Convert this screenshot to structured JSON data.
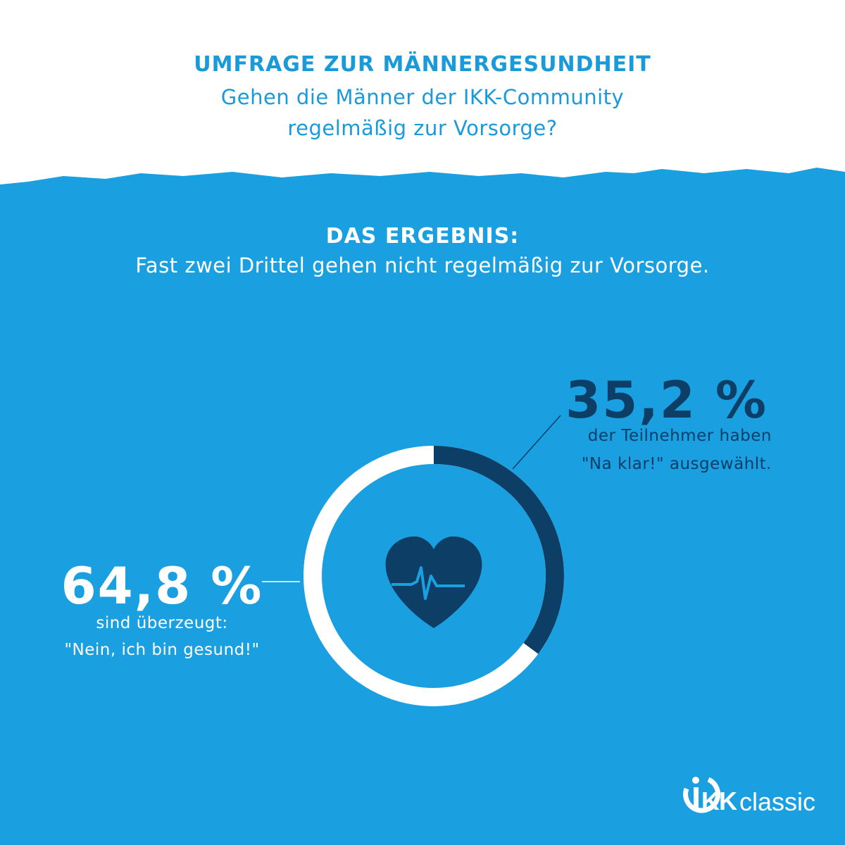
{
  "header": {
    "title": "UMFRAGE ZUR MÄNNERGESUNDHEIT",
    "subtitle_line1": "Gehen die Männer der IKK-Community",
    "subtitle_line2": "regelmäßig zur Vorsorge?"
  },
  "result": {
    "heading": "DAS ERGEBNIS:",
    "text": "Fast zwei Drittel gehen nicht regelmäßig zur Vorsorge."
  },
  "chart_data": {
    "type": "pie",
    "style": "donut",
    "series": [
      {
        "value": 35.2,
        "label": "35,2 %",
        "desc_line1": "der Teilnehmer haben",
        "desc_line2": "\"Na klar!\" ausgewählt.",
        "color": "#0d3e66"
      },
      {
        "value": 64.8,
        "label": "64,8 %",
        "desc_line1": "sind überzeugt:",
        "desc_line2": "\"Nein, ich bin gesund!\"",
        "color": "#ffffff"
      }
    ],
    "center_icon": "heart-pulse-icon"
  },
  "brand": {
    "logo_text": "classic",
    "logo_icon": "ikk-logo-icon"
  },
  "colors": {
    "background_blue": "#1aa0e0",
    "header_text": "#1a9ad9",
    "dark_navy": "#0d3e66",
    "white": "#ffffff"
  }
}
